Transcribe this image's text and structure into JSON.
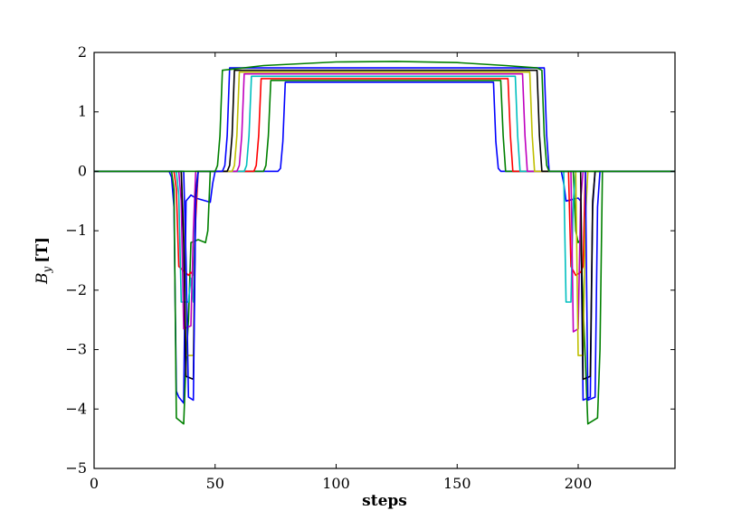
{
  "chart_data": {
    "type": "line",
    "title": "",
    "xlabel": "steps",
    "ylabel_symbol": "B",
    "ylabel_subscript": "y",
    "ylabel_unit": "[T]",
    "xlim": [
      0,
      240
    ],
    "ylim": [
      -5,
      2
    ],
    "xticks": [
      0,
      50,
      100,
      150,
      200
    ],
    "xtick_labels": [
      "0",
      "50",
      "100",
      "150",
      "200"
    ],
    "yticks": [
      2,
      1,
      0,
      -1,
      -2,
      -3,
      -4,
      -5
    ],
    "ytick_labels": [
      "2",
      "1",
      "0",
      "−1",
      "−2",
      "−3",
      "−4",
      "−5"
    ],
    "grid": false,
    "legend": "none",
    "series": [
      {
        "color": "#0000ff",
        "points": [
          [
            0,
            0
          ],
          [
            31,
            0
          ],
          [
            32,
            -0.1
          ],
          [
            33,
            -0.6
          ],
          [
            34,
            -3.7
          ],
          [
            35,
            -3.8
          ],
          [
            37,
            -3.9
          ],
          [
            38,
            -0.5
          ],
          [
            40,
            -0.4
          ],
          [
            42,
            -0.45
          ],
          [
            48,
            -0.52
          ],
          [
            49,
            -0.2
          ],
          [
            50,
            0
          ],
          [
            76,
            0
          ],
          [
            77,
            0.05
          ],
          [
            78,
            0.5
          ],
          [
            79,
            1.5
          ],
          [
            165,
            1.5
          ],
          [
            166,
            0.5
          ],
          [
            167,
            0.05
          ],
          [
            168,
            0
          ],
          [
            193,
            0
          ],
          [
            194,
            -0.2
          ],
          [
            195,
            -0.5
          ],
          [
            200,
            -0.45
          ],
          [
            201,
            -0.5
          ],
          [
            202,
            -3.85
          ],
          [
            205,
            -3.8
          ],
          [
            206,
            -0.6
          ],
          [
            207,
            0
          ],
          [
            240,
            0
          ]
        ]
      },
      {
        "color": "#008000",
        "points": [
          [
            0,
            0
          ],
          [
            32,
            0
          ],
          [
            33,
            -0.3
          ],
          [
            34,
            -4.15
          ],
          [
            37,
            -4.25
          ],
          [
            38,
            -3.2
          ],
          [
            39,
            -2.5
          ],
          [
            40,
            -1.2
          ],
          [
            43,
            -1.15
          ],
          [
            46,
            -1.2
          ],
          [
            47,
            -1.0
          ],
          [
            48,
            0
          ],
          [
            70,
            0
          ],
          [
            71,
            0.1
          ],
          [
            72,
            0.6
          ],
          [
            73,
            1.53
          ],
          [
            168,
            1.53
          ],
          [
            169,
            0.6
          ],
          [
            170,
            0
          ],
          [
            198,
            0
          ],
          [
            199,
            -1.0
          ],
          [
            200,
            -1.2
          ],
          [
            201,
            -1.15
          ],
          [
            204,
            -4.25
          ],
          [
            208,
            -4.15
          ],
          [
            209,
            -3.0
          ],
          [
            210,
            0
          ],
          [
            240,
            0
          ]
        ]
      },
      {
        "color": "#ff0000",
        "points": [
          [
            0,
            0
          ],
          [
            33,
            0
          ],
          [
            34,
            -0.3
          ],
          [
            35,
            -1.6
          ],
          [
            39,
            -1.75
          ],
          [
            40,
            -1.7
          ],
          [
            41,
            -1.75
          ],
          [
            42,
            -0.8
          ],
          [
            43,
            0
          ],
          [
            66,
            0
          ],
          [
            67,
            0.1
          ],
          [
            68,
            0.6
          ],
          [
            69,
            1.56
          ],
          [
            171,
            1.56
          ],
          [
            172,
            0.6
          ],
          [
            173,
            0
          ],
          [
            196,
            0
          ],
          [
            197,
            -1.6
          ],
          [
            199,
            -1.75
          ],
          [
            201,
            -1.7
          ],
          [
            202,
            -1.6
          ],
          [
            203,
            0
          ],
          [
            240,
            0
          ]
        ]
      },
      {
        "color": "#00bfbf",
        "points": [
          [
            0,
            0
          ],
          [
            34,
            0
          ],
          [
            35,
            -0.4
          ],
          [
            36,
            -2.2
          ],
          [
            39,
            -2.2
          ],
          [
            40,
            -1.8
          ],
          [
            41,
            -2.2
          ],
          [
            42,
            -0.3
          ],
          [
            43,
            0
          ],
          [
            62,
            0
          ],
          [
            63,
            0.1
          ],
          [
            64,
            0.6
          ],
          [
            65,
            1.6
          ],
          [
            174,
            1.6
          ],
          [
            175,
            0.6
          ],
          [
            176,
            0
          ],
          [
            194,
            0
          ],
          [
            195,
            -2.2
          ],
          [
            197,
            -2.2
          ],
          [
            198,
            -0.5
          ],
          [
            199,
            0
          ],
          [
            240,
            0
          ]
        ]
      },
      {
        "color": "#bf00bf",
        "points": [
          [
            0,
            0
          ],
          [
            35,
            0
          ],
          [
            36,
            -0.5
          ],
          [
            37,
            -2.65
          ],
          [
            40,
            -2.6
          ],
          [
            41,
            -1.0
          ],
          [
            42,
            0
          ],
          [
            59,
            0
          ],
          [
            60,
            0.1
          ],
          [
            61,
            0.6
          ],
          [
            62,
            1.64
          ],
          [
            177,
            1.64
          ],
          [
            178,
            0.6
          ],
          [
            179,
            0
          ],
          [
            197,
            0
          ],
          [
            198,
            -2.7
          ],
          [
            200,
            -2.65
          ],
          [
            201,
            -0.5
          ],
          [
            202,
            0
          ],
          [
            240,
            0
          ]
        ]
      },
      {
        "color": "#bfbf00",
        "points": [
          [
            0,
            0
          ],
          [
            36,
            0
          ],
          [
            37,
            -1.0
          ],
          [
            38,
            -3.1
          ],
          [
            41,
            -3.1
          ],
          [
            42,
            -0.5
          ],
          [
            43,
            0
          ],
          [
            57,
            0
          ],
          [
            58,
            0.1
          ],
          [
            59,
            0.6
          ],
          [
            60,
            1.67
          ],
          [
            180,
            1.67
          ],
          [
            181,
            0.6
          ],
          [
            182,
            0
          ],
          [
            199,
            0
          ],
          [
            200,
            -3.1
          ],
          [
            202,
            -3.1
          ],
          [
            203,
            -0.8
          ],
          [
            204,
            0
          ],
          [
            240,
            0
          ]
        ]
      },
      {
        "color": "#000000",
        "points": [
          [
            0,
            0
          ],
          [
            36,
            0
          ],
          [
            37,
            -1.2
          ],
          [
            38,
            -3.45
          ],
          [
            41,
            -3.5
          ],
          [
            42,
            -0.4
          ],
          [
            43,
            0
          ],
          [
            55,
            0
          ],
          [
            56,
            0.1
          ],
          [
            57,
            0.6
          ],
          [
            58,
            1.7
          ],
          [
            183,
            1.7
          ],
          [
            184,
            0.6
          ],
          [
            185,
            0
          ],
          [
            201,
            0
          ],
          [
            202,
            -3.5
          ],
          [
            205,
            -3.45
          ],
          [
            206,
            -0.5
          ],
          [
            207,
            0
          ],
          [
            240,
            0
          ]
        ]
      },
      {
        "color": "#0000ff",
        "points": [
          [
            0,
            0
          ],
          [
            37,
            0
          ],
          [
            38,
            -1.5
          ],
          [
            39,
            -3.8
          ],
          [
            41,
            -3.85
          ],
          [
            42,
            -0.5
          ],
          [
            43,
            0
          ],
          [
            53,
            0
          ],
          [
            54,
            0.1
          ],
          [
            55,
            0.6
          ],
          [
            56,
            1.74
          ],
          [
            186,
            1.74
          ],
          [
            187,
            0.6
          ],
          [
            188,
            0
          ],
          [
            203,
            0
          ],
          [
            204,
            -3.85
          ],
          [
            207,
            -3.8
          ],
          [
            208,
            -0.6
          ],
          [
            209,
            0
          ],
          [
            240,
            0
          ]
        ]
      },
      {
        "color": "#008000",
        "points": [
          [
            0,
            0
          ],
          [
            50,
            0
          ],
          [
            51,
            0.1
          ],
          [
            52,
            0.6
          ],
          [
            53,
            1.7
          ],
          [
            70,
            1.78
          ],
          [
            100,
            1.84
          ],
          [
            125,
            1.85
          ],
          [
            150,
            1.83
          ],
          [
            170,
            1.78
          ],
          [
            183,
            1.74
          ],
          [
            185,
            1.7
          ],
          [
            186,
            0.6
          ],
          [
            187,
            0.1
          ],
          [
            188,
            0
          ],
          [
            240,
            0
          ]
        ]
      }
    ]
  }
}
